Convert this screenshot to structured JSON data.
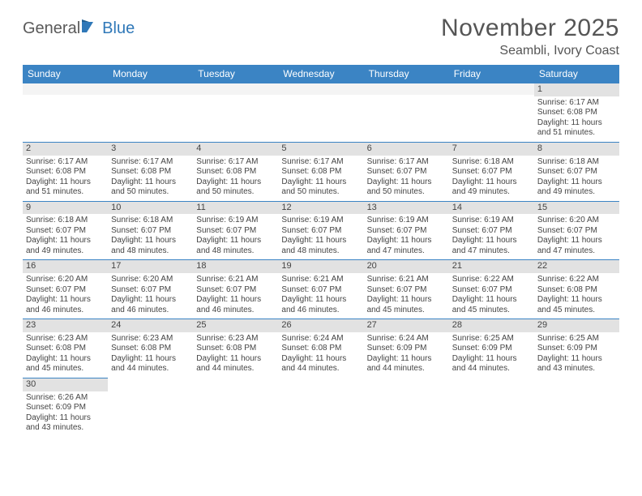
{
  "logo": {
    "part1": "General",
    "part2": "Blue"
  },
  "title": "November 2025",
  "location": "Seambli, Ivory Coast",
  "colors": {
    "header_bg": "#3b84c4",
    "header_text": "#ffffff",
    "daynum_bg": "#e2e2e2",
    "cell_border_top": "#3b84c4",
    "body_text": "#444444",
    "title_text": "#555555",
    "logo_gray": "#5a5a5a",
    "logo_blue": "#2f78b8"
  },
  "typography": {
    "title_fontsize": 30,
    "location_fontsize": 16,
    "header_cell_fontsize": 12,
    "daynum_fontsize": 11,
    "body_fontsize": 10
  },
  "weekdays": [
    "Sunday",
    "Monday",
    "Tuesday",
    "Wednesday",
    "Thursday",
    "Friday",
    "Saturday"
  ],
  "grid": [
    [
      {
        "empty": true
      },
      {
        "empty": true
      },
      {
        "empty": true
      },
      {
        "empty": true
      },
      {
        "empty": true
      },
      {
        "empty": true
      },
      {
        "n": "1",
        "sr": "Sunrise: 6:17 AM",
        "ss": "Sunset: 6:08 PM",
        "dl": "Daylight: 11 hours and 51 minutes."
      }
    ],
    [
      {
        "n": "2",
        "sr": "Sunrise: 6:17 AM",
        "ss": "Sunset: 6:08 PM",
        "dl": "Daylight: 11 hours and 51 minutes."
      },
      {
        "n": "3",
        "sr": "Sunrise: 6:17 AM",
        "ss": "Sunset: 6:08 PM",
        "dl": "Daylight: 11 hours and 50 minutes."
      },
      {
        "n": "4",
        "sr": "Sunrise: 6:17 AM",
        "ss": "Sunset: 6:08 PM",
        "dl": "Daylight: 11 hours and 50 minutes."
      },
      {
        "n": "5",
        "sr": "Sunrise: 6:17 AM",
        "ss": "Sunset: 6:08 PM",
        "dl": "Daylight: 11 hours and 50 minutes."
      },
      {
        "n": "6",
        "sr": "Sunrise: 6:17 AM",
        "ss": "Sunset: 6:07 PM",
        "dl": "Daylight: 11 hours and 50 minutes."
      },
      {
        "n": "7",
        "sr": "Sunrise: 6:18 AM",
        "ss": "Sunset: 6:07 PM",
        "dl": "Daylight: 11 hours and 49 minutes."
      },
      {
        "n": "8",
        "sr": "Sunrise: 6:18 AM",
        "ss": "Sunset: 6:07 PM",
        "dl": "Daylight: 11 hours and 49 minutes."
      }
    ],
    [
      {
        "n": "9",
        "sr": "Sunrise: 6:18 AM",
        "ss": "Sunset: 6:07 PM",
        "dl": "Daylight: 11 hours and 49 minutes."
      },
      {
        "n": "10",
        "sr": "Sunrise: 6:18 AM",
        "ss": "Sunset: 6:07 PM",
        "dl": "Daylight: 11 hours and 48 minutes."
      },
      {
        "n": "11",
        "sr": "Sunrise: 6:19 AM",
        "ss": "Sunset: 6:07 PM",
        "dl": "Daylight: 11 hours and 48 minutes."
      },
      {
        "n": "12",
        "sr": "Sunrise: 6:19 AM",
        "ss": "Sunset: 6:07 PM",
        "dl": "Daylight: 11 hours and 48 minutes."
      },
      {
        "n": "13",
        "sr": "Sunrise: 6:19 AM",
        "ss": "Sunset: 6:07 PM",
        "dl": "Daylight: 11 hours and 47 minutes."
      },
      {
        "n": "14",
        "sr": "Sunrise: 6:19 AM",
        "ss": "Sunset: 6:07 PM",
        "dl": "Daylight: 11 hours and 47 minutes."
      },
      {
        "n": "15",
        "sr": "Sunrise: 6:20 AM",
        "ss": "Sunset: 6:07 PM",
        "dl": "Daylight: 11 hours and 47 minutes."
      }
    ],
    [
      {
        "n": "16",
        "sr": "Sunrise: 6:20 AM",
        "ss": "Sunset: 6:07 PM",
        "dl": "Daylight: 11 hours and 46 minutes."
      },
      {
        "n": "17",
        "sr": "Sunrise: 6:20 AM",
        "ss": "Sunset: 6:07 PM",
        "dl": "Daylight: 11 hours and 46 minutes."
      },
      {
        "n": "18",
        "sr": "Sunrise: 6:21 AM",
        "ss": "Sunset: 6:07 PM",
        "dl": "Daylight: 11 hours and 46 minutes."
      },
      {
        "n": "19",
        "sr": "Sunrise: 6:21 AM",
        "ss": "Sunset: 6:07 PM",
        "dl": "Daylight: 11 hours and 46 minutes."
      },
      {
        "n": "20",
        "sr": "Sunrise: 6:21 AM",
        "ss": "Sunset: 6:07 PM",
        "dl": "Daylight: 11 hours and 45 minutes."
      },
      {
        "n": "21",
        "sr": "Sunrise: 6:22 AM",
        "ss": "Sunset: 6:07 PM",
        "dl": "Daylight: 11 hours and 45 minutes."
      },
      {
        "n": "22",
        "sr": "Sunrise: 6:22 AM",
        "ss": "Sunset: 6:08 PM",
        "dl": "Daylight: 11 hours and 45 minutes."
      }
    ],
    [
      {
        "n": "23",
        "sr": "Sunrise: 6:23 AM",
        "ss": "Sunset: 6:08 PM",
        "dl": "Daylight: 11 hours and 45 minutes."
      },
      {
        "n": "24",
        "sr": "Sunrise: 6:23 AM",
        "ss": "Sunset: 6:08 PM",
        "dl": "Daylight: 11 hours and 44 minutes."
      },
      {
        "n": "25",
        "sr": "Sunrise: 6:23 AM",
        "ss": "Sunset: 6:08 PM",
        "dl": "Daylight: 11 hours and 44 minutes."
      },
      {
        "n": "26",
        "sr": "Sunrise: 6:24 AM",
        "ss": "Sunset: 6:08 PM",
        "dl": "Daylight: 11 hours and 44 minutes."
      },
      {
        "n": "27",
        "sr": "Sunrise: 6:24 AM",
        "ss": "Sunset: 6:09 PM",
        "dl": "Daylight: 11 hours and 44 minutes."
      },
      {
        "n": "28",
        "sr": "Sunrise: 6:25 AM",
        "ss": "Sunset: 6:09 PM",
        "dl": "Daylight: 11 hours and 44 minutes."
      },
      {
        "n": "29",
        "sr": "Sunrise: 6:25 AM",
        "ss": "Sunset: 6:09 PM",
        "dl": "Daylight: 11 hours and 43 minutes."
      }
    ],
    [
      {
        "n": "30",
        "sr": "Sunrise: 6:26 AM",
        "ss": "Sunset: 6:09 PM",
        "dl": "Daylight: 11 hours and 43 minutes."
      },
      {
        "blank": true
      },
      {
        "blank": true
      },
      {
        "blank": true
      },
      {
        "blank": true
      },
      {
        "blank": true
      },
      {
        "blank": true
      }
    ]
  ]
}
